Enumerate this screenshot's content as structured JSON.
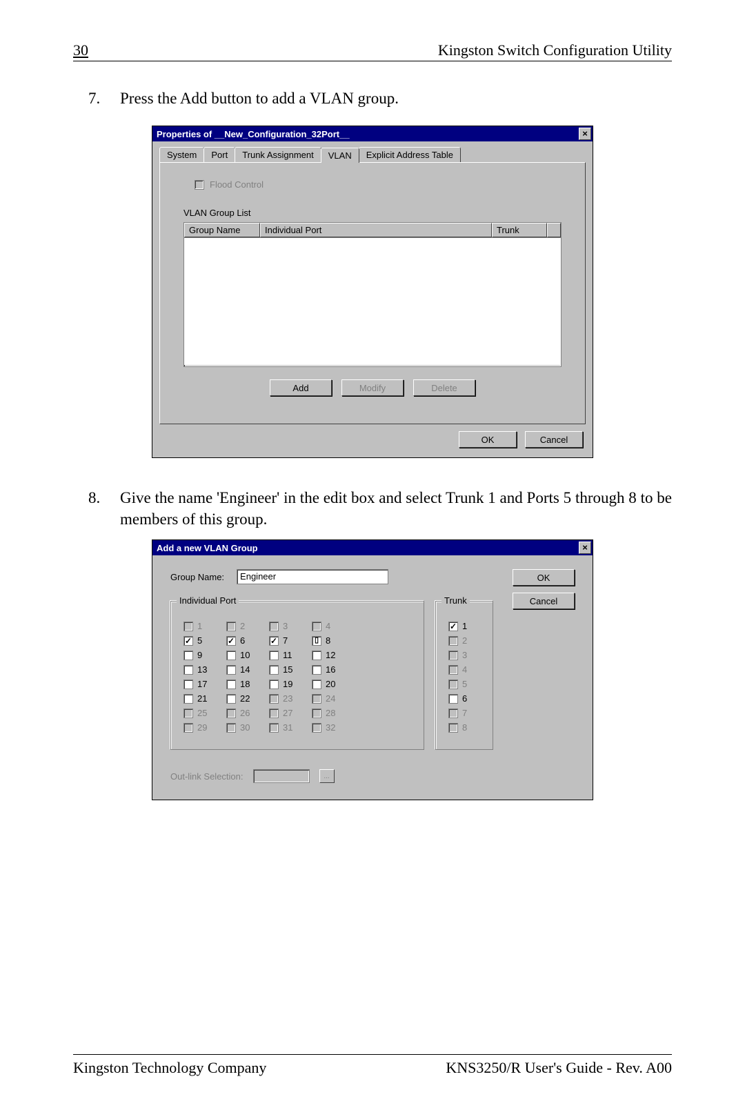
{
  "page": {
    "number": "30",
    "header_right": "Kingston Switch Configuration Utility",
    "footer_left": "Kingston Technology Company",
    "footer_right": "KNS3250/R User's Guide - Rev. A00"
  },
  "item7": {
    "num": "7.",
    "text": "Press the Add button to add a VLAN group."
  },
  "item8": {
    "num": "8.",
    "text": "Give the name 'Engineer' in the edit box and select Trunk 1 and Ports 5 through 8 to be members of this group."
  },
  "dialog1": {
    "title": "Properties of __New_Configuration_32Port__",
    "tabs": [
      "System",
      "Port",
      "Trunk Assignment",
      "VLAN",
      "Explicit Address Table"
    ],
    "active_tab_index": 3,
    "flood_checkbox_label": "Flood Control",
    "group_list_label": "VLAN Group List",
    "columns": [
      "Group Name",
      "Individual Port",
      "Trunk"
    ],
    "buttons": {
      "add": "Add",
      "modify": "Modify",
      "delete": "Delete"
    },
    "footer_buttons": {
      "ok": "OK",
      "cancel": "Cancel"
    }
  },
  "dialog2": {
    "title": "Add a new VLAN Group",
    "group_name_label": "Group Name:",
    "group_name_value": "Engineer",
    "individual_port_label": "Individual Port",
    "trunk_label": "Trunk",
    "ports": [
      {
        "n": "1",
        "disabled": true,
        "checked": false
      },
      {
        "n": "2",
        "disabled": true,
        "checked": false
      },
      {
        "n": "3",
        "disabled": true,
        "checked": false
      },
      {
        "n": "4",
        "disabled": true,
        "checked": false
      },
      {
        "n": "5",
        "disabled": false,
        "checked": true
      },
      {
        "n": "6",
        "disabled": false,
        "checked": true
      },
      {
        "n": "7",
        "disabled": false,
        "checked": true
      },
      {
        "n": "8",
        "disabled": false,
        "checked": true,
        "sel": true
      },
      {
        "n": "9",
        "disabled": false,
        "checked": false
      },
      {
        "n": "10",
        "disabled": false,
        "checked": false
      },
      {
        "n": "11",
        "disabled": false,
        "checked": false
      },
      {
        "n": "12",
        "disabled": false,
        "checked": false
      },
      {
        "n": "13",
        "disabled": false,
        "checked": false
      },
      {
        "n": "14",
        "disabled": false,
        "checked": false
      },
      {
        "n": "15",
        "disabled": false,
        "checked": false
      },
      {
        "n": "16",
        "disabled": false,
        "checked": false
      },
      {
        "n": "17",
        "disabled": false,
        "checked": false
      },
      {
        "n": "18",
        "disabled": false,
        "checked": false
      },
      {
        "n": "19",
        "disabled": false,
        "checked": false
      },
      {
        "n": "20",
        "disabled": false,
        "checked": false
      },
      {
        "n": "21",
        "disabled": false,
        "checked": false
      },
      {
        "n": "22",
        "disabled": false,
        "checked": false
      },
      {
        "n": "23",
        "disabled": true,
        "checked": false
      },
      {
        "n": "24",
        "disabled": true,
        "checked": false
      },
      {
        "n": "25",
        "disabled": true,
        "checked": false
      },
      {
        "n": "26",
        "disabled": true,
        "checked": false
      },
      {
        "n": "27",
        "disabled": true,
        "checked": false
      },
      {
        "n": "28",
        "disabled": true,
        "checked": false
      },
      {
        "n": "29",
        "disabled": true,
        "checked": false
      },
      {
        "n": "30",
        "disabled": true,
        "checked": false
      },
      {
        "n": "31",
        "disabled": true,
        "checked": false
      },
      {
        "n": "32",
        "disabled": true,
        "checked": false
      }
    ],
    "trunks": [
      {
        "n": "1",
        "disabled": false,
        "checked": true
      },
      {
        "n": "2",
        "disabled": true,
        "checked": false
      },
      {
        "n": "3",
        "disabled": true,
        "checked": false
      },
      {
        "n": "4",
        "disabled": true,
        "checked": false
      },
      {
        "n": "5",
        "disabled": true,
        "checked": false
      },
      {
        "n": "6",
        "disabled": false,
        "checked": false
      },
      {
        "n": "7",
        "disabled": true,
        "checked": false
      },
      {
        "n": "8",
        "disabled": true,
        "checked": false
      }
    ],
    "outlink_label": "Out-link Selection:",
    "outlink_btn": "...",
    "ok": "OK",
    "cancel": "Cancel"
  }
}
